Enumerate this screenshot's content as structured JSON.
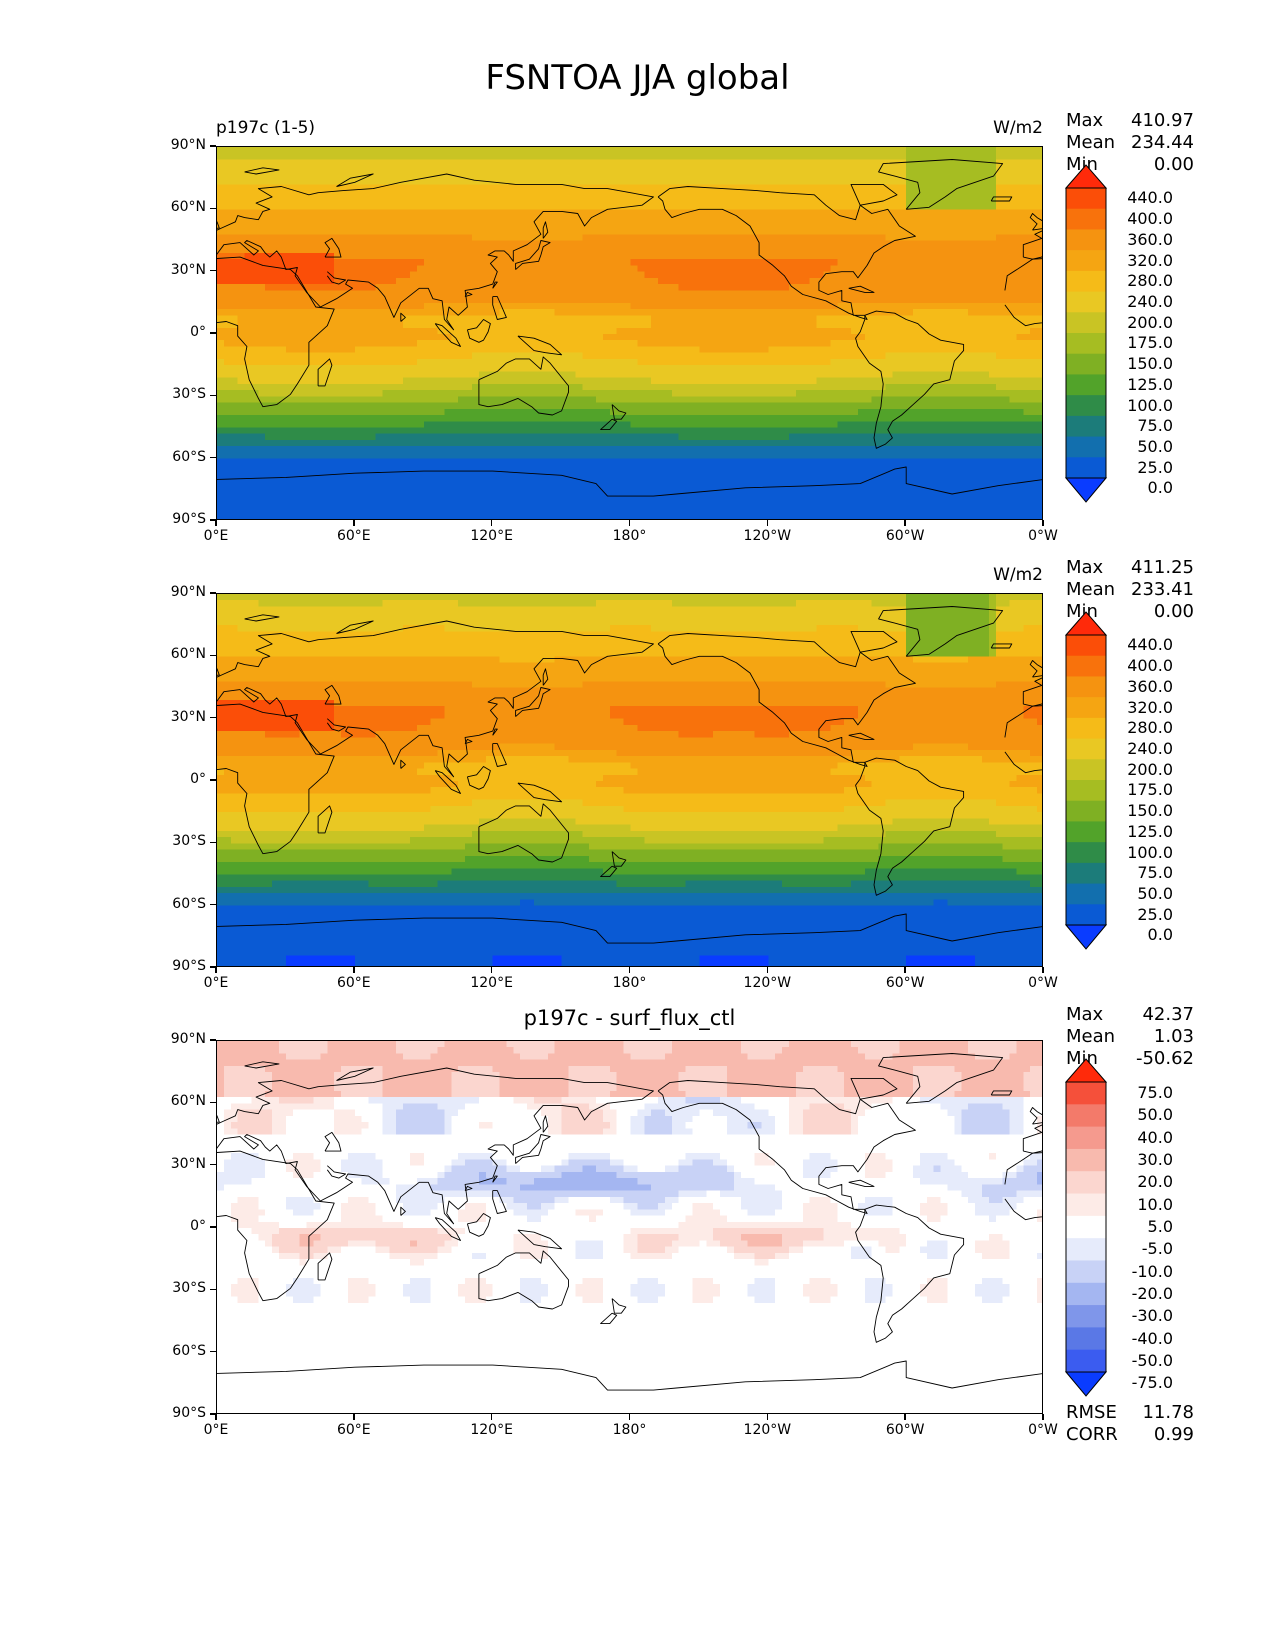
{
  "figure": {
    "title": "FSNTOA JJA global"
  },
  "axes": {
    "lat_ticks": [
      "90°N",
      "60°N",
      "30°N",
      "0°",
      "30°S",
      "60°S",
      "90°S"
    ],
    "lon_ticks": [
      "0°E",
      "60°E",
      "120°E",
      "180°",
      "120°W",
      "60°W",
      "0°W"
    ]
  },
  "panels": [
    {
      "id": "test",
      "left_title": "p197c (1-5)",
      "center_title": "",
      "units": "W/m2",
      "stats": [
        {
          "label": "Max",
          "value": "410.97"
        },
        {
          "label": "Mean",
          "value": "234.44"
        },
        {
          "label": "Min",
          "value": "0.00"
        }
      ],
      "colorbar": {
        "labels": [
          "440.0",
          "400.0",
          "360.0",
          "320.0",
          "280.0",
          "240.0",
          "200.0",
          "175.0",
          "150.0",
          "125.0",
          "100.0",
          "75.0",
          "50.0",
          "25.0",
          "0.0"
        ],
        "colors": [
          "#ff2a0a",
          "#fb4e08",
          "#f8720c",
          "#f59310",
          "#f5a512",
          "#f5bb18",
          "#e9c823",
          "#c9c424",
          "#a6bd22",
          "#7fb023",
          "#52a32a",
          "#2f8c48",
          "#1c7c7a",
          "#126fae",
          "#0a5ad4",
          "#0a3cff"
        ]
      }
    },
    {
      "id": "reference",
      "left_title": "",
      "center_title": "",
      "units": "W/m2",
      "stats": [
        {
          "label": "Max",
          "value": "411.25"
        },
        {
          "label": "Mean",
          "value": "233.41"
        },
        {
          "label": "Min",
          "value": "0.00"
        }
      ],
      "colorbar": {
        "labels": [
          "440.0",
          "400.0",
          "360.0",
          "320.0",
          "280.0",
          "240.0",
          "200.0",
          "175.0",
          "150.0",
          "125.0",
          "100.0",
          "75.0",
          "50.0",
          "25.0",
          "0.0"
        ],
        "colors": [
          "#ff2a0a",
          "#fb4e08",
          "#f8720c",
          "#f59310",
          "#f5a512",
          "#f5bb18",
          "#e9c823",
          "#c9c424",
          "#a6bd22",
          "#7fb023",
          "#52a32a",
          "#2f8c48",
          "#1c7c7a",
          "#126fae",
          "#0a5ad4",
          "#0a3cff"
        ]
      }
    },
    {
      "id": "difference",
      "left_title": "",
      "center_title": "p197c - surf_flux_ctl",
      "units": "",
      "stats": [
        {
          "label": "Max",
          "value": "42.37"
        },
        {
          "label": "Mean",
          "value": "1.03"
        },
        {
          "label": "Min",
          "value": "-50.62"
        }
      ],
      "metrics": [
        {
          "label": "RMSE",
          "value": "11.78"
        },
        {
          "label": "CORR",
          "value": "0.99"
        }
      ],
      "colorbar": {
        "labels": [
          "75.0",
          "50.0",
          "40.0",
          "30.0",
          "20.0",
          "10.0",
          "5.0",
          "-5.0",
          "-10.0",
          "-20.0",
          "-30.0",
          "-40.0",
          "-50.0",
          "-75.0"
        ],
        "colors": [
          "#ff2a0a",
          "#f5503a",
          "#f37a6a",
          "#f59a8e",
          "#f8baae",
          "#fbd6cf",
          "#fdebe7",
          "#ffffff",
          "#e6ebfb",
          "#c8d2f6",
          "#a4b6f1",
          "#7f96ea",
          "#5a78e6",
          "#3b5cf0",
          "#0a3cff"
        ]
      }
    }
  ]
}
